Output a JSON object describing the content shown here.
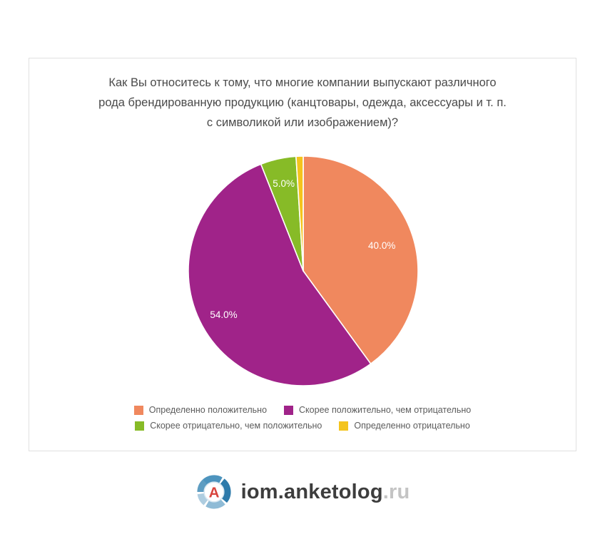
{
  "card": {
    "title_lines": [
      "Как Вы относитесь к тому, что многие компании выпускают различного",
      "рода брендированную продукцию (канцтовары, одежда, аксессуары и т. п.",
      "с символикой или изображением)?"
    ]
  },
  "chart_data": {
    "type": "pie",
    "title": "Как Вы относитесь к тому, что многие компании выпускают различного рода брендированную продукцию (канцтовары, одежда, аксессуары и т. п. с символикой или изображением)?",
    "slices": [
      {
        "label": "Определенно положительно",
        "value": 40.0,
        "pct_label": "40.0%",
        "color": "#F0885E"
      },
      {
        "label": "Скорее положительно, чем отрицательно",
        "value": 54.0,
        "pct_label": "54.0%",
        "color": "#A02389"
      },
      {
        "label": "Скорее отрицательно, чем положительно",
        "value": 5.0,
        "pct_label": "5.0%",
        "color": "#87BB27"
      },
      {
        "label": "Определенно отрицательно",
        "value": 1.0,
        "pct_label": "",
        "color": "#F4C41D"
      }
    ],
    "start_angle_deg": 0,
    "direction": "clockwise",
    "legend_position": "bottom",
    "legend_rows": [
      [
        0,
        1
      ],
      [
        2,
        3
      ]
    ],
    "slice_label_color": "#ffffff"
  },
  "footer": {
    "logo_letter": "A",
    "logo_text_main": "iom.anketolog",
    "logo_text_suffix": ".ru"
  }
}
